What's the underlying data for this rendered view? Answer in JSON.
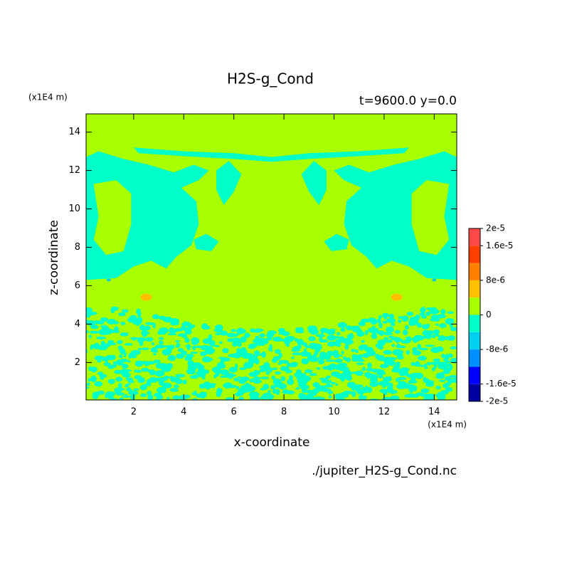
{
  "chart_data": {
    "type": "contour",
    "title": "H2S-g_Cond",
    "subtitle": "t=9600.0 y=0.0",
    "x_label": "x-coordinate",
    "y_label": "z-coordinate",
    "x_unit": "(x1E4 m)",
    "y_unit": "(x1E4 m)",
    "source": "./jupiter_H2S-g_Cond.nc",
    "xlim": [
      0.1,
      14.9
    ],
    "xticks": [
      2,
      4,
      6,
      8,
      10,
      12,
      14
    ],
    "ylim": [
      0.05,
      14.95
    ],
    "yticks": [
      2,
      4,
      6,
      8,
      10,
      12,
      14
    ],
    "levels": [
      -2e-05,
      -1.6e-05,
      -1.2e-05,
      -8e-06,
      -4e-06,
      0,
      4e-06,
      8e-06,
      1.2e-05,
      1.6e-05,
      2e-05
    ],
    "colors": [
      "#0000a0",
      "#0000ff",
      "#0090ff",
      "#00d0f0",
      "#00ffc8",
      "#a8ff00",
      "#ffc000",
      "#ff8000",
      "#ff4000",
      "#ff4848"
    ],
    "colorbar_ticks": [
      {
        "value": 2e-05,
        "label": "2e-5"
      },
      {
        "value": 1.6e-05,
        "label": "1.6e-5"
      },
      {
        "value": 8e-06,
        "label": "8e-6"
      },
      {
        "value": 0,
        "label": "0"
      },
      {
        "value": -8e-06,
        "label": "-8e-6"
      },
      {
        "value": -1.6e-05,
        "label": "-1.6e-5"
      },
      {
        "value": -2e-05,
        "label": "-2e-5"
      }
    ]
  }
}
